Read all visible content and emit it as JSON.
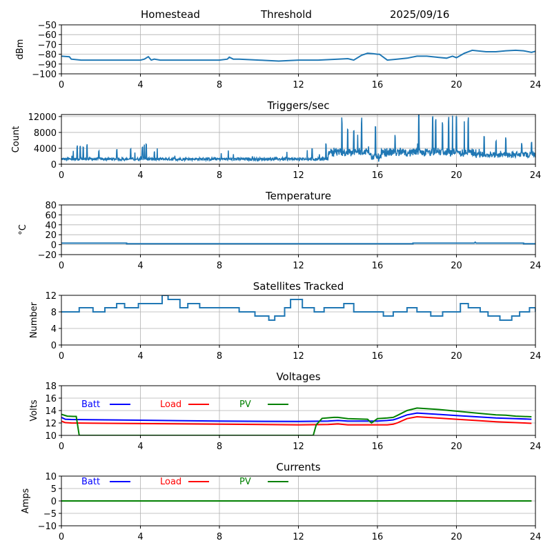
{
  "header": {
    "site": "Homestead",
    "mode": "Threshold",
    "date": "2025/09/16"
  },
  "chart_data": [
    {
      "id": "signal",
      "type": "line",
      "title": "",
      "xlabel": "",
      "ylabel": "dBm",
      "xlim": [
        0,
        24
      ],
      "ylim": [
        -100,
        -50
      ],
      "xticks": [
        "0",
        "4",
        "8",
        "12",
        "16",
        "20",
        "24"
      ],
      "yticks": [
        "-50",
        "-60",
        "-70",
        "-80",
        "-90",
        "-100"
      ],
      "ytick_values": [
        -50,
        -60,
        -70,
        -80,
        -90,
        -100
      ],
      "grid": true,
      "series": [
        {
          "name": "signal",
          "color": "#1f77b4",
          "x": [
            0,
            0.4,
            0.5,
            1,
            2,
            3,
            4,
            4.2,
            4.4,
            4.55,
            4.7,
            5,
            6,
            7,
            8,
            8.4,
            8.5,
            8.7,
            9,
            10,
            11,
            12,
            13,
            14,
            14.5,
            14.8,
            15.2,
            15.5,
            15.8,
            16,
            16.1,
            16.5,
            17,
            17.5,
            18,
            18.5,
            19,
            19.5,
            19.8,
            20,
            20.4,
            20.8,
            21.5,
            22,
            22.5,
            23,
            23.4,
            23.8,
            24
          ],
          "y": [
            -82,
            -82.5,
            -85,
            -86,
            -86,
            -86,
            -86,
            -85,
            -82.5,
            -86,
            -85,
            -86,
            -86,
            -86,
            -86,
            -85,
            -83,
            -85,
            -85,
            -86,
            -87,
            -86,
            -86,
            -85,
            -84.5,
            -86,
            -81,
            -79,
            -79.5,
            -80,
            -80,
            -86,
            -85,
            -84,
            -82,
            -82,
            -83,
            -84,
            -82,
            -83.5,
            -79,
            -76,
            -77.5,
            -77.5,
            -76.5,
            -76,
            -76.5,
            -78,
            -77
          ]
        }
      ]
    },
    {
      "id": "triggers",
      "type": "line",
      "title": "Triggers/sec",
      "ylabel": "Count",
      "xlim": [
        0,
        24
      ],
      "ylim": [
        0,
        12500
      ],
      "xticks": [
        "0",
        "4",
        "8",
        "12",
        "16",
        "20",
        "24"
      ],
      "yticks": [
        "0",
        "4000",
        "8000",
        "12000"
      ],
      "ytick_values": [
        0,
        4000,
        8000,
        12000
      ],
      "grid": true,
      "baseline": 1300,
      "noise": 700,
      "spikes": [
        [
          0.6,
          3500
        ],
        [
          0.8,
          4800
        ],
        [
          0.95,
          4600
        ],
        [
          1.1,
          4700
        ],
        [
          1.3,
          5200
        ],
        [
          1.9,
          3400
        ],
        [
          2.8,
          4000
        ],
        [
          3.5,
          4200
        ],
        [
          4.1,
          5000
        ],
        [
          4.2,
          5400
        ],
        [
          4.3,
          5600
        ],
        [
          4.7,
          3300
        ],
        [
          12.7,
          4300
        ],
        [
          13.4,
          5500
        ],
        [
          13.8,
          4600
        ],
        [
          14.2,
          12000
        ],
        [
          14.5,
          8800
        ],
        [
          14.8,
          8500
        ],
        [
          15.0,
          8000
        ],
        [
          15.2,
          12000
        ],
        [
          15.9,
          11000
        ],
        [
          16.9,
          7500
        ],
        [
          18.1,
          12500
        ],
        [
          18.8,
          12500
        ],
        [
          18.95,
          12500
        ],
        [
          19.3,
          11000
        ],
        [
          19.6,
          12500
        ],
        [
          19.8,
          12500
        ],
        [
          20.0,
          12500
        ],
        [
          20.4,
          12500
        ],
        [
          20.6,
          12000
        ],
        [
          21.4,
          7000
        ],
        [
          22.0,
          6500
        ],
        [
          22.5,
          6800
        ],
        [
          23.3,
          5500
        ],
        [
          23.8,
          6000
        ]
      ]
    },
    {
      "id": "temperature",
      "type": "line",
      "title": "Temperature",
      "ylabel": "°C",
      "xlim": [
        0,
        24
      ],
      "ylim": [
        -20,
        80
      ],
      "xticks": [
        "0",
        "4",
        "8",
        "12",
        "16",
        "20",
        "24"
      ],
      "yticks": [
        "-20",
        "0",
        "20",
        "40",
        "60",
        "80"
      ],
      "ytick_values": [
        -20,
        0,
        20,
        40,
        60,
        80
      ],
      "grid": true,
      "series": [
        {
          "name": "temperature",
          "color": "#1f77b4",
          "x": [
            0,
            3.3,
            3.3,
            17.8,
            17.8,
            20.9,
            20.95,
            21.0,
            23.4,
            23.4,
            24
          ],
          "y": [
            3,
            3,
            2,
            2,
            3,
            3,
            5,
            3,
            3,
            2,
            2
          ]
        }
      ]
    },
    {
      "id": "satellites",
      "type": "line",
      "title": "Satellites Tracked",
      "ylabel": "Number",
      "xlim": [
        0,
        24
      ],
      "ylim": [
        0,
        12
      ],
      "xticks": [
        "0",
        "4",
        "8",
        "12",
        "16",
        "20",
        "24"
      ],
      "yticks": [
        "0",
        "4",
        "8",
        "12"
      ],
      "ytick_values": [
        0,
        4,
        8,
        12
      ],
      "grid": true,
      "series": [
        {
          "name": "satellites",
          "color": "#1f77b4",
          "step": true,
          "x": [
            0,
            0.9,
            1.6,
            2.2,
            2.8,
            3.2,
            3.9,
            4.8,
            5.1,
            5.4,
            6.0,
            6.4,
            7.0,
            7.8,
            8.4,
            9.0,
            9.8,
            10.5,
            10.8,
            11.3,
            11.6,
            12.2,
            12.8,
            13.3,
            13.8,
            14.3,
            14.8,
            16.0,
            16.3,
            16.8,
            17.5,
            18.0,
            18.7,
            19.3,
            20.2,
            20.6,
            21.2,
            21.6,
            22.2,
            22.8,
            23.2,
            23.7,
            24
          ],
          "y": [
            8,
            9,
            8,
            9,
            10,
            9,
            10,
            10,
            12,
            11,
            9,
            10,
            9,
            9,
            9,
            8,
            7,
            6,
            7,
            9,
            11,
            9,
            8,
            9,
            9,
            10,
            8,
            8,
            7,
            8,
            9,
            8,
            7,
            8,
            10,
            9,
            8,
            7,
            6,
            7,
            8,
            9,
            8
          ]
        }
      ]
    },
    {
      "id": "voltages",
      "type": "line",
      "title": "Voltages",
      "ylabel": "Volts",
      "xlim": [
        0,
        24
      ],
      "ylim": [
        10,
        18
      ],
      "xticks": [
        "0",
        "4",
        "8",
        "12",
        "16",
        "20",
        "24"
      ],
      "yticks": [
        "10",
        "12",
        "14",
        "16",
        "18"
      ],
      "ytick_values": [
        10,
        12,
        14,
        16,
        18
      ],
      "grid": true,
      "legend": [
        {
          "label": "Batt",
          "color": "#0000ff"
        },
        {
          "label": "Load",
          "color": "#ff0000"
        },
        {
          "label": "PV",
          "color": "#008000"
        }
      ],
      "series": [
        {
          "name": "Batt",
          "color": "#0000ff",
          "x": [
            0,
            0.2,
            0.5,
            4,
            8,
            12,
            13.5,
            14,
            14.5,
            15.5,
            16,
            16.5,
            16.8,
            17,
            17.5,
            18,
            19,
            20,
            21,
            22,
            23,
            23.8
          ],
          "y": [
            12.9,
            12.6,
            12.55,
            12.45,
            12.3,
            12.25,
            12.3,
            12.4,
            12.3,
            12.3,
            12.3,
            12.4,
            12.5,
            12.7,
            13.3,
            13.6,
            13.4,
            13.2,
            13.0,
            12.8,
            12.7,
            12.6
          ]
        },
        {
          "name": "Load",
          "color": "#ff0000",
          "x": [
            0,
            0.2,
            0.5,
            4,
            8,
            12,
            13.5,
            14,
            14.5,
            15.5,
            16,
            16.5,
            16.8,
            17,
            17.5,
            18,
            19,
            20,
            21,
            22,
            23,
            23.8
          ],
          "y": [
            12.3,
            12.05,
            12.0,
            11.9,
            11.8,
            11.7,
            11.75,
            11.85,
            11.7,
            11.7,
            11.7,
            11.7,
            11.8,
            12.0,
            12.7,
            13.0,
            12.8,
            12.6,
            12.4,
            12.2,
            12.05,
            11.95
          ]
        },
        {
          "name": "PV",
          "color": "#008000",
          "x": [
            0,
            0.3,
            0.6,
            0.75,
            0.9,
            12.75,
            12.9,
            13.2,
            13.8,
            14.0,
            14.5,
            15.5,
            15.7,
            16.0,
            16.5,
            16.8,
            17.0,
            17.5,
            18.0,
            19,
            20,
            21,
            22,
            22.5,
            23,
            23.8
          ],
          "y": [
            13.4,
            13.1,
            13.05,
            13.05,
            10.0,
            10.0,
            11.7,
            12.75,
            12.9,
            12.9,
            12.7,
            12.6,
            12.0,
            12.7,
            12.8,
            12.9,
            13.2,
            14.0,
            14.4,
            14.2,
            13.9,
            13.6,
            13.3,
            13.25,
            13.1,
            13.0
          ]
        }
      ]
    },
    {
      "id": "currents",
      "type": "line",
      "title": "Currents",
      "ylabel": "Amps",
      "xlim": [
        0,
        24
      ],
      "ylim": [
        -10,
        10
      ],
      "xticks": [
        "0",
        "4",
        "8",
        "12",
        "16",
        "20",
        "24"
      ],
      "yticks": [
        "-10",
        "-5",
        "0",
        "5",
        "10"
      ],
      "ytick_values": [
        -10,
        -5,
        0,
        5,
        10
      ],
      "grid": true,
      "legend": [
        {
          "label": "Batt",
          "color": "#0000ff"
        },
        {
          "label": "Load",
          "color": "#ff0000"
        },
        {
          "label": "PV",
          "color": "#008000"
        }
      ],
      "series": [
        {
          "name": "Batt",
          "color": "#0000ff",
          "x": [
            0,
            23.8
          ],
          "y": [
            0,
            0
          ]
        },
        {
          "name": "Load",
          "color": "#ff0000",
          "x": [
            0,
            23.8
          ],
          "y": [
            0,
            0
          ]
        },
        {
          "name": "PV",
          "color": "#008000",
          "x": [
            0,
            23.8
          ],
          "y": [
            0,
            0
          ]
        }
      ]
    }
  ]
}
